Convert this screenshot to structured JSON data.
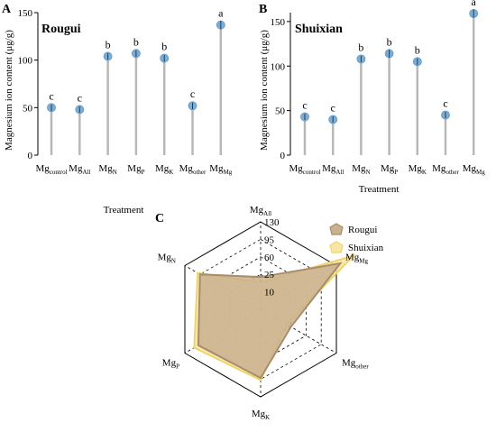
{
  "chart_data": [
    {
      "type": "lollipop",
      "panel_label": "A",
      "title": "Rougui",
      "ylabel": "Magnesium ion content (μg/g)",
      "xlabel": "Treatment",
      "ylim": [
        0,
        150
      ],
      "yticks": [
        0,
        50,
        100,
        150
      ],
      "categories": [
        {
          "base": "Mg",
          "sub": "control"
        },
        {
          "base": "Mg",
          "sub": "All"
        },
        {
          "base": "Mg",
          "sub": "N"
        },
        {
          "base": "Mg",
          "sub": "P"
        },
        {
          "base": "Mg",
          "sub": "K"
        },
        {
          "base": "Mg",
          "sub": "other"
        },
        {
          "base": "Mg",
          "sub": "Mg"
        }
      ],
      "values": [
        50,
        48,
        104,
        107,
        102,
        52,
        137
      ],
      "errors": [
        2,
        2,
        2,
        2,
        2,
        2,
        3
      ],
      "letters": [
        "c",
        "c",
        "b",
        "b",
        "b",
        "c",
        "a"
      ],
      "grid": false
    },
    {
      "type": "lollipop",
      "panel_label": "B",
      "title": "Shuixian",
      "ylabel": "Magnesium ion content (μg/g)",
      "xlabel": "Treatment",
      "ylim": [
        0,
        160
      ],
      "yticks": [
        0,
        50,
        100,
        150
      ],
      "categories": [
        {
          "base": "Mg",
          "sub": "control"
        },
        {
          "base": "Mg",
          "sub": "All"
        },
        {
          "base": "Mg",
          "sub": "N"
        },
        {
          "base": "Mg",
          "sub": "P"
        },
        {
          "base": "Mg",
          "sub": "K"
        },
        {
          "base": "Mg",
          "sub": "other"
        },
        {
          "base": "Mg",
          "sub": "Mg"
        }
      ],
      "values": [
        43,
        40,
        108,
        114,
        105,
        45,
        159
      ],
      "errors": [
        2,
        2,
        2,
        3,
        2,
        2,
        3
      ],
      "letters": [
        "c",
        "c",
        "b",
        "b",
        "b",
        "c",
        "a"
      ],
      "grid": false
    },
    {
      "type": "radar",
      "panel_label": "C",
      "axes": [
        {
          "base": "Mg",
          "sub": "All"
        },
        {
          "base": "Mg",
          "sub": "Mg"
        },
        {
          "base": "Mg",
          "sub": "other"
        },
        {
          "base": "Mg",
          "sub": "K"
        },
        {
          "base": "Mg",
          "sub": "P"
        },
        {
          "base": "Mg",
          "sub": "N"
        }
      ],
      "rticks": [
        "10",
        "25",
        "60",
        "95",
        "130"
      ],
      "rmax": 130,
      "legend_position": "top-right",
      "series": [
        {
          "name": "Rougui",
          "values": [
            48,
            137,
            52,
            102,
            107,
            104
          ],
          "fill": "#c9b08e",
          "stroke": "#a88d6a"
        },
        {
          "name": "Shuixian",
          "values": [
            40,
            159,
            45,
            105,
            114,
            108
          ],
          "fill": "#f6e7a6",
          "stroke": "#f0d36a"
        }
      ]
    }
  ],
  "colors": {
    "marker": "#7aaed6",
    "stem": "#b8b8b8"
  }
}
